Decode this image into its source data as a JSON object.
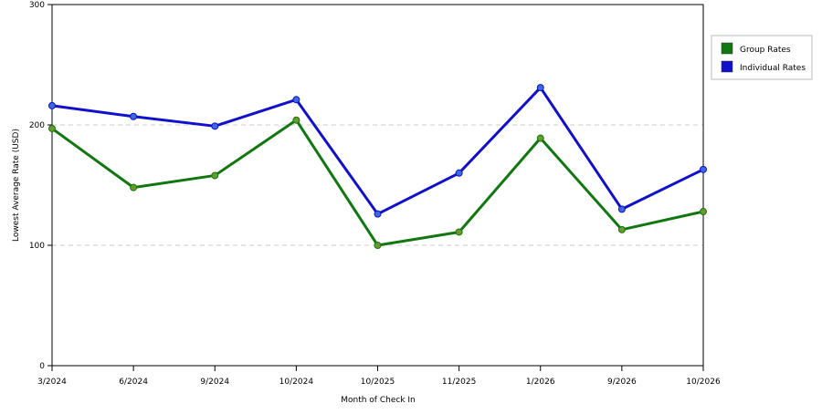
{
  "chart_data": {
    "type": "line",
    "xlabel": "Month of Check In",
    "ylabel": "Lowest Average Rate (USD)",
    "categories": [
      "3/2024",
      "6/2024",
      "9/2024",
      "10/2024",
      "10/2025",
      "11/2025",
      "1/2026",
      "9/2026",
      "10/2026"
    ],
    "ylim": [
      0,
      300
    ],
    "yticks": [
      0,
      100,
      200,
      300
    ],
    "grid": "horizontal dashed at 100 and 200",
    "legend_position": "right",
    "series": [
      {
        "name": "Group Rates",
        "color": "#117711",
        "values": [
          197,
          148,
          158,
          204,
          100,
          111,
          189,
          113,
          128
        ]
      },
      {
        "name": "Individual Rates",
        "color": "#1111cc",
        "values": [
          216,
          207,
          199,
          221,
          126,
          160,
          231,
          130,
          163
        ]
      }
    ]
  }
}
